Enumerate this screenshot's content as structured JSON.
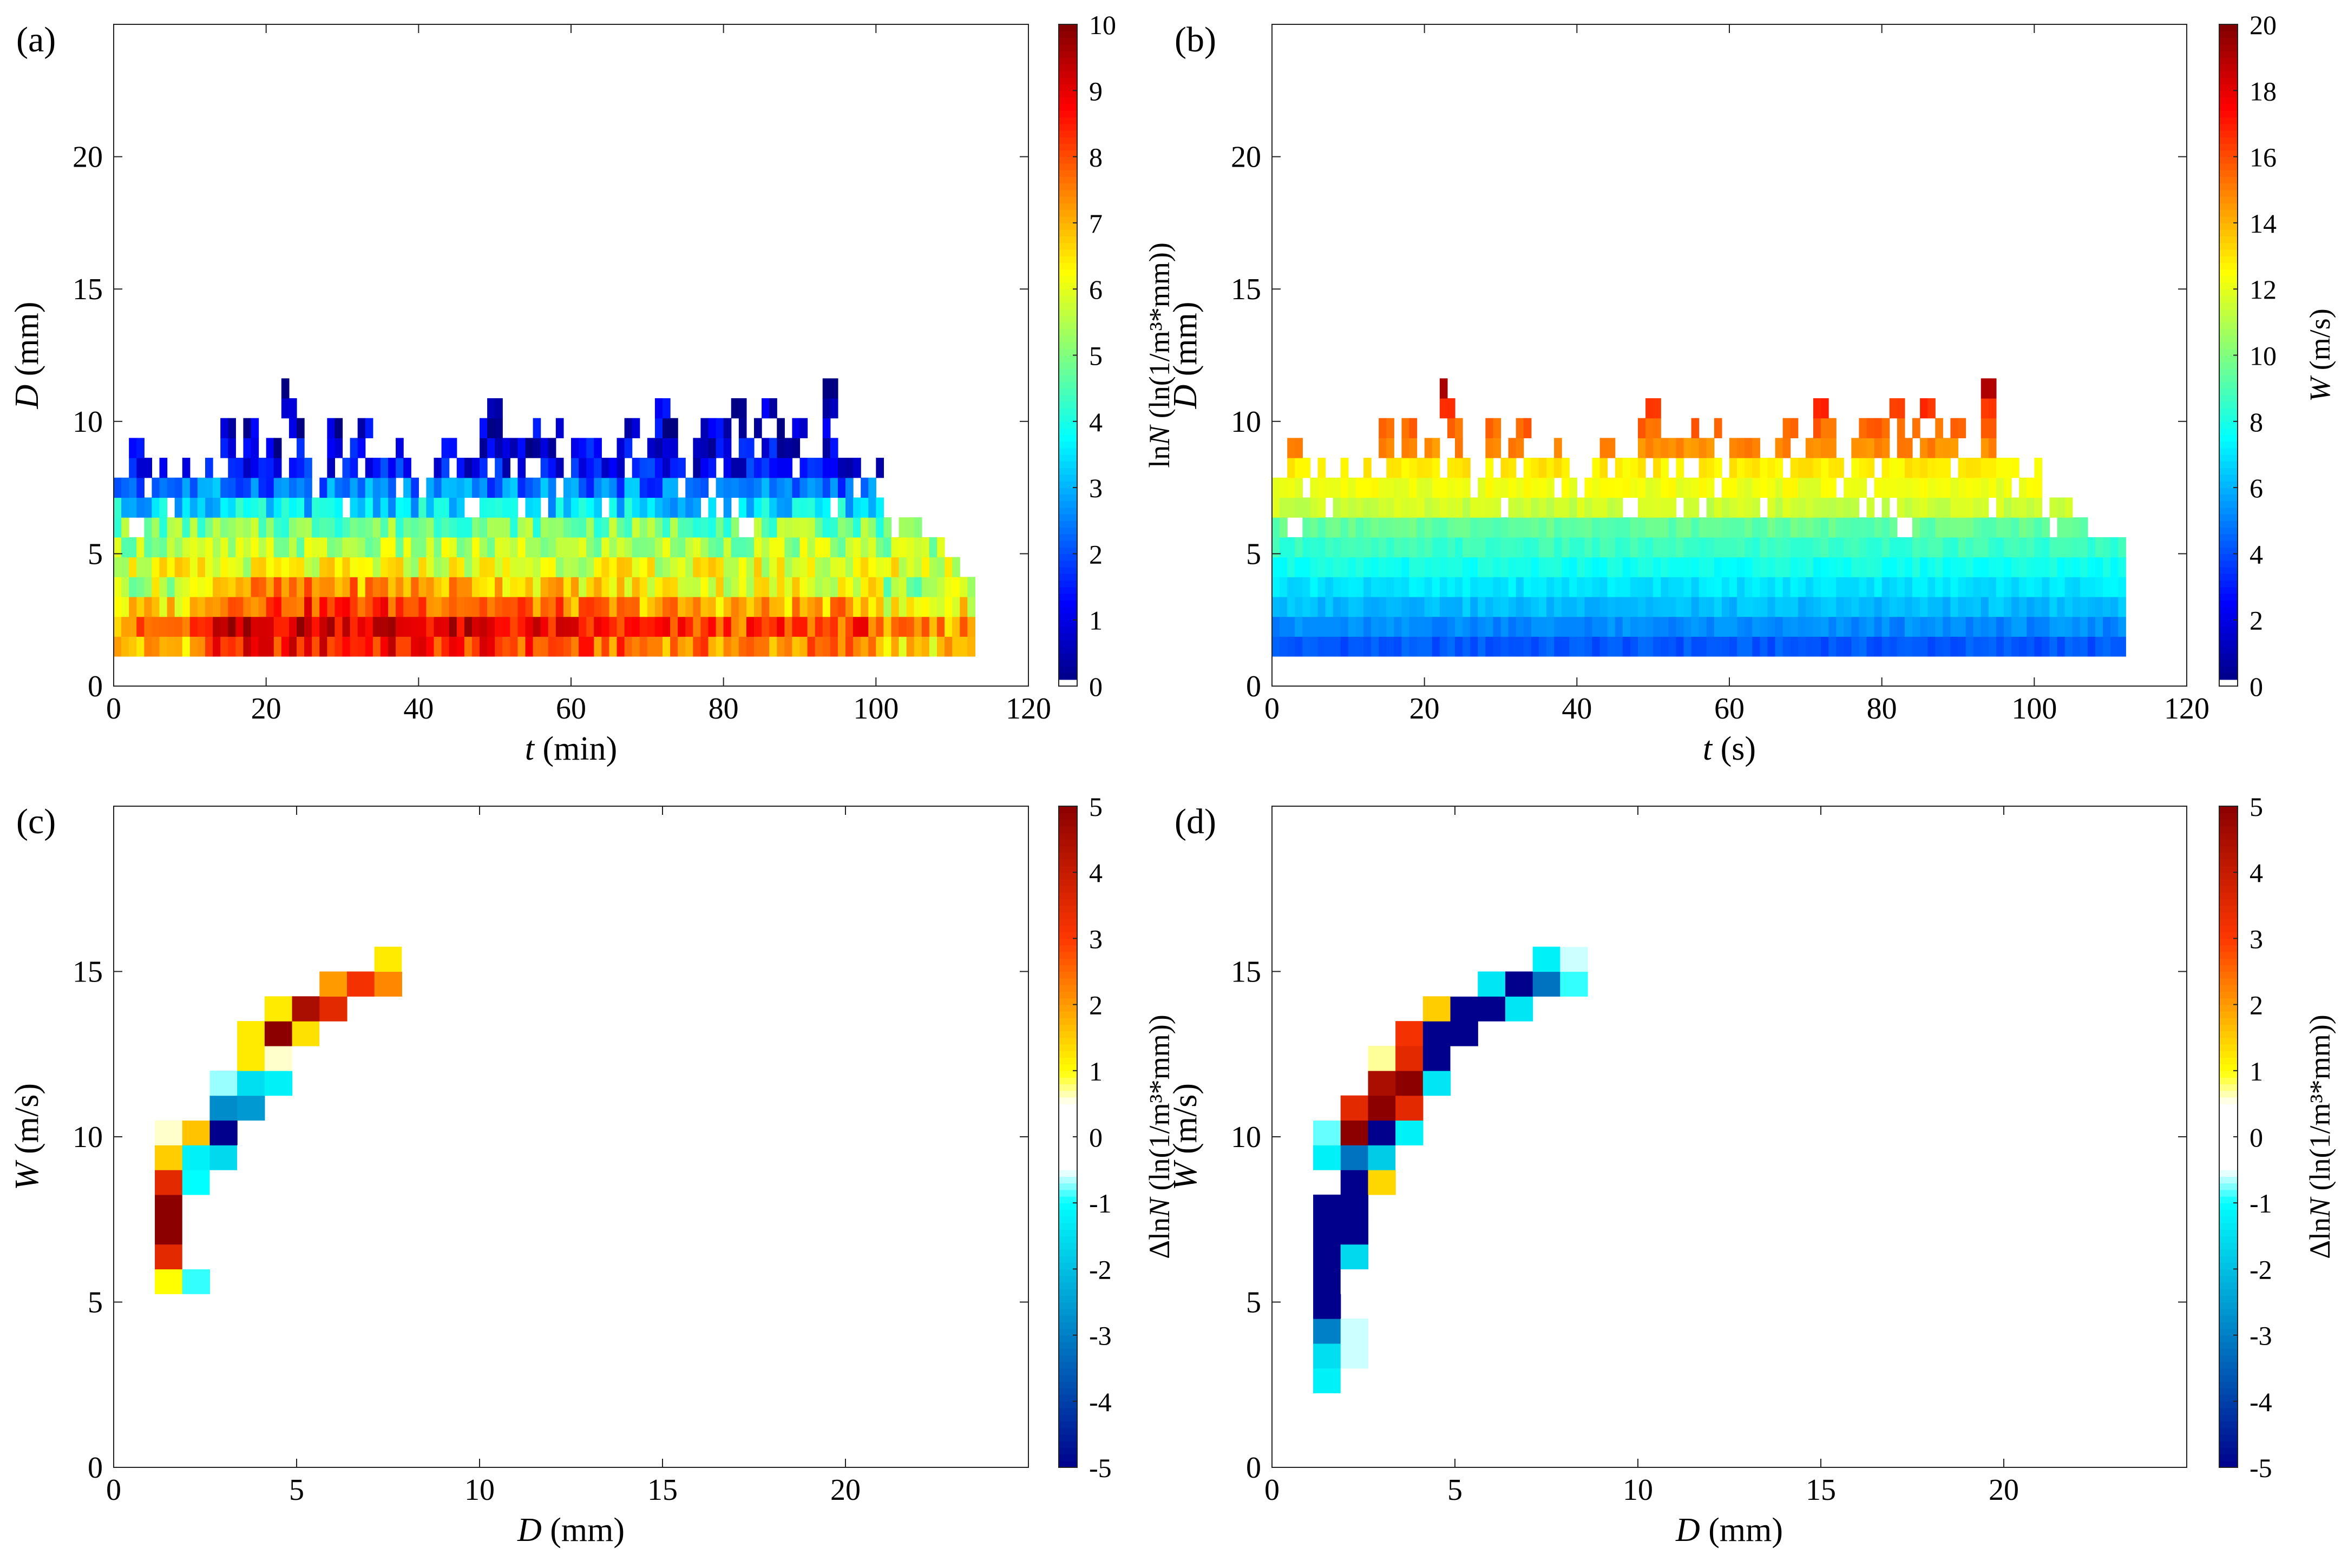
{
  "chart_data": [
    {
      "panel": "(a)",
      "type": "heatmap",
      "xlabel_italic": "t",
      "xlabel_rest": " (min)",
      "ylabel_italic": "D",
      "ylabel_rest": " (mm)",
      "xlim": [
        0,
        120
      ],
      "ylim": [
        0,
        25
      ],
      "xticks": [
        0,
        20,
        40,
        60,
        80,
        100,
        120
      ],
      "yticks": [
        0,
        5,
        10,
        15,
        20
      ],
      "colorbar": {
        "label_prefix": "ln",
        "label_italic": "N",
        "label_rest": " (ln(1/m³*mm))",
        "min": 0,
        "max": 10,
        "ticks": [
          0,
          1,
          2,
          3,
          4,
          5,
          6,
          7,
          8,
          9,
          10
        ],
        "colormap": "jet"
      },
      "cells": {
        "x_start": 0,
        "x_step": 1,
        "d_bins": [
          1.5,
          2.25,
          3.0,
          3.75,
          4.5,
          5.25,
          6.0,
          6.75,
          7.5,
          8.25,
          9.0,
          9.75,
          10.5,
          11.25
        ],
        "bin_height": 0.75,
        "columns_end": [
          112,
          112,
          112,
          112,
          110,
          108,
          105,
          101,
          99,
          100,
          95,
          93,
          94,
          94
        ],
        "profile_mean": [
          8.0,
          8.6,
          7.6,
          6.7,
          6.0,
          5.4,
          4.9,
          3.4,
          2.4,
          1.2,
          0.9,
          0.7,
          0.6,
          0.5
        ],
        "sparse_bins": {
          "8.25": [
            2,
            3,
            4,
            6,
            9,
            12,
            15,
            16,
            17,
            18,
            19,
            20,
            21,
            23,
            24,
            25,
            28,
            30,
            31,
            33,
            34,
            35,
            36,
            37,
            38,
            42,
            43,
            45,
            46,
            47,
            48,
            50,
            51,
            53,
            56,
            57,
            58,
            60,
            61,
            62,
            63,
            64,
            65,
            66,
            68,
            69,
            70,
            71,
            72,
            73,
            74,
            76,
            77,
            78,
            80,
            81,
            82,
            83,
            84,
            85,
            86,
            87,
            88,
            90,
            91,
            92,
            93,
            94,
            95,
            96,
            97,
            100
          ],
          "9.0": [
            2,
            3,
            14,
            15,
            17,
            18,
            20,
            21,
            24,
            28,
            29,
            31,
            32,
            37,
            43,
            44,
            48,
            49,
            50,
            51,
            52,
            53,
            54,
            55,
            56,
            57,
            60,
            61,
            62,
            63,
            66,
            67,
            70,
            71,
            72,
            73,
            76,
            77,
            78,
            79,
            80,
            82,
            83,
            85,
            86,
            87,
            88,
            89,
            93,
            94,
            100
          ],
          "9.75": [
            14,
            15,
            17,
            18,
            23,
            24,
            28,
            29,
            32,
            33,
            48,
            49,
            50,
            55,
            58,
            67,
            68,
            71,
            72,
            73,
            77,
            78,
            79,
            80,
            82,
            84,
            87,
            89,
            90,
            93,
            94
          ],
          "10.5": [
            22,
            23,
            49,
            50,
            71,
            72,
            81,
            82,
            85,
            86,
            93,
            94,
            95
          ],
          "11.25": [
            22,
            93,
            94
          ]
        }
      }
    },
    {
      "panel": "(b)",
      "type": "heatmap",
      "xlabel_italic": "t",
      "xlabel_rest": " (s)",
      "ylabel_italic": "D",
      "ylabel_rest": " (mm)",
      "xlim": [
        0,
        120
      ],
      "ylim": [
        0,
        25
      ],
      "xticks": [
        0,
        20,
        40,
        60,
        80,
        100,
        120
      ],
      "yticks": [
        0,
        5,
        10,
        15,
        20
      ],
      "colorbar": {
        "label_prefix": "",
        "label_italic": "W",
        "label_rest": " (m/s)",
        "min": 0,
        "max": 20,
        "ticks": [
          0,
          2,
          4,
          6,
          8,
          10,
          12,
          14,
          16,
          18,
          20
        ],
        "colormap": "jet"
      },
      "cells": {
        "x_start": 0,
        "x_step": 1,
        "d_bins": [
          1.5,
          2.25,
          3.0,
          3.75,
          4.5,
          5.25,
          6.0,
          6.75,
          7.5,
          8.25,
          9.0,
          9.75,
          10.5,
          11.25
        ],
        "bin_height": 0.75,
        "columns_end": [
          111,
          111,
          111,
          111,
          111,
          111,
          106,
          104,
          100,
          100,
          99,
          94,
          94,
          94
        ],
        "profile_mean": [
          4.2,
          5.2,
          6.2,
          7.0,
          7.8,
          8.6,
          9.4,
          11.5,
          12.2,
          12.8,
          14.8,
          15.5,
          16.5,
          19.5
        ],
        "sparse_bins": {
          "8.25": [
            2,
            3,
            4,
            6,
            9,
            12,
            15,
            16,
            17,
            18,
            19,
            20,
            21,
            23,
            24,
            25,
            28,
            30,
            31,
            33,
            34,
            35,
            36,
            37,
            38,
            42,
            43,
            45,
            46,
            47,
            48,
            50,
            51,
            53,
            56,
            57,
            58,
            60,
            61,
            62,
            63,
            64,
            65,
            66,
            68,
            69,
            70,
            71,
            72,
            73,
            74,
            76,
            77,
            78,
            80,
            81,
            82,
            83,
            84,
            85,
            86,
            87,
            88,
            90,
            91,
            92,
            93,
            94,
            95,
            96,
            97,
            100
          ],
          "9.0": [
            2,
            3,
            14,
            15,
            17,
            18,
            20,
            21,
            24,
            28,
            29,
            31,
            32,
            37,
            43,
            44,
            48,
            49,
            50,
            51,
            52,
            53,
            54,
            55,
            56,
            57,
            60,
            61,
            62,
            63,
            66,
            67,
            70,
            71,
            72,
            73,
            76,
            77,
            78,
            79,
            80,
            82,
            83,
            85,
            86,
            87,
            88,
            89,
            93,
            94,
            100
          ],
          "9.75": [
            14,
            15,
            17,
            18,
            23,
            24,
            28,
            29,
            32,
            33,
            48,
            49,
            50,
            55,
            58,
            67,
            68,
            71,
            72,
            73,
            77,
            78,
            79,
            80,
            82,
            84,
            87,
            89,
            90,
            93,
            94
          ],
          "10.5": [
            22,
            23,
            49,
            50,
            71,
            72,
            81,
            82,
            85,
            86,
            93,
            94,
            95
          ],
          "11.25": [
            22,
            93,
            94
          ]
        }
      }
    },
    {
      "panel": "(c)",
      "type": "heatmap",
      "xlabel_italic": "D",
      "xlabel_rest": " (mm)",
      "ylabel_italic": "W",
      "ylabel_rest": " (m/s)",
      "xlim": [
        0,
        25
      ],
      "ylim": [
        0,
        20
      ],
      "xticks": [
        0,
        5,
        10,
        15,
        20
      ],
      "yticks": [
        0,
        5,
        10,
        15
      ],
      "colorbar": {
        "label_prefix": "Δln",
        "label_italic": "N",
        "label_rest": " (ln(1/m³*mm))",
        "min": -5,
        "max": 5,
        "ticks": [
          -5,
          -4,
          -3,
          -2,
          -1,
          0,
          1,
          2,
          3,
          4,
          5
        ],
        "colormap": "jet_white_center"
      },
      "cells": {
        "cell_width": 0.75,
        "cell_height": 0.75,
        "points": [
          [
            1.5,
            2.625,
            0.2
          ],
          [
            1.5,
            3.375,
            0.2
          ],
          [
            1.5,
            4.125,
            0.15
          ],
          [
            1.5,
            4.875,
            0.1
          ],
          [
            1.5,
            5.625,
            1.0
          ],
          [
            1.5,
            6.375,
            3.5
          ],
          [
            1.5,
            7.125,
            5.0
          ],
          [
            1.5,
            7.875,
            5.0
          ],
          [
            1.5,
            8.625,
            3.5
          ],
          [
            1.5,
            9.375,
            1.5
          ],
          [
            1.5,
            10.125,
            0.6
          ],
          [
            1.5,
            10.875,
            0.3
          ],
          [
            2.25,
            1.875,
            -0.5
          ],
          [
            2.25,
            4.875,
            0.2
          ],
          [
            2.25,
            5.625,
            -0.9
          ],
          [
            2.25,
            6.375,
            -0.2
          ],
          [
            2.25,
            7.125,
            -0.2
          ],
          [
            2.25,
            7.875,
            -0.3
          ],
          [
            2.25,
            8.625,
            -1.0
          ],
          [
            2.25,
            9.375,
            -1.2
          ],
          [
            2.25,
            10.125,
            1.6
          ],
          [
            2.25,
            10.875,
            0.4
          ],
          [
            3.0,
            8.625,
            -0.5
          ],
          [
            3.0,
            9.375,
            -1.6
          ],
          [
            3.0,
            10.125,
            -5.0
          ],
          [
            3.0,
            10.875,
            -2.8
          ],
          [
            3.0,
            11.625,
            -0.7
          ],
          [
            3.75,
            9.375,
            -0.2
          ],
          [
            3.75,
            10.875,
            -2.6
          ],
          [
            3.75,
            11.625,
            -1.5
          ],
          [
            3.75,
            12.375,
            1.2
          ],
          [
            3.75,
            13.125,
            1.2
          ],
          [
            4.5,
            11.625,
            -1.2
          ],
          [
            4.5,
            12.375,
            0.6
          ],
          [
            4.5,
            13.125,
            5.0
          ],
          [
            4.5,
            13.875,
            1.2
          ],
          [
            5.25,
            12.375,
            0.5
          ],
          [
            5.25,
            13.125,
            1.3
          ],
          [
            5.25,
            13.875,
            4.5
          ],
          [
            6.0,
            13.125,
            0.3
          ],
          [
            6.0,
            13.875,
            3.5
          ],
          [
            6.0,
            14.625,
            2.0
          ],
          [
            6.75,
            14.625,
            3.2
          ],
          [
            7.5,
            14.625,
            2.2
          ],
          [
            7.5,
            15.375,
            1.2
          ],
          [
            8.25,
            15.375,
            0.4
          ]
        ]
      }
    },
    {
      "panel": "(d)",
      "type": "heatmap",
      "xlabel_italic": "D",
      "xlabel_rest": " (mm)",
      "ylabel_italic": "W",
      "ylabel_rest": " (m/s)",
      "xlim": [
        0,
        25
      ],
      "ylim": [
        0,
        20
      ],
      "xticks": [
        0,
        5,
        10,
        15,
        20
      ],
      "yticks": [
        0,
        5,
        10,
        15
      ],
      "colorbar": {
        "label_prefix": "Δln",
        "label_italic": "N",
        "label_rest": " (ln(1/m³*mm))",
        "min": -5,
        "max": 5,
        "ticks": [
          -5,
          -4,
          -3,
          -2,
          -1,
          0,
          1,
          2,
          3,
          4,
          5
        ],
        "colormap": "jet_white_center"
      },
      "cells": {
        "cell_width": 0.75,
        "cell_height": 0.75,
        "points": [
          [
            1.5,
            2.625,
            -1.2
          ],
          [
            1.5,
            3.375,
            -1.5
          ],
          [
            1.5,
            4.125,
            -3.0
          ],
          [
            1.5,
            4.875,
            -5.0
          ],
          [
            1.5,
            5.625,
            -5.0
          ],
          [
            1.5,
            6.375,
            -5.0
          ],
          [
            1.5,
            7.125,
            -5.0
          ],
          [
            1.5,
            7.875,
            -5.0
          ],
          [
            1.5,
            9.375,
            -1.2
          ],
          [
            1.5,
            10.125,
            -0.8
          ],
          [
            1.5,
            10.875,
            -0.5
          ],
          [
            2.25,
            1.875,
            -0.4
          ],
          [
            2.25,
            2.625,
            -0.4
          ],
          [
            2.25,
            3.375,
            -0.6
          ],
          [
            2.25,
            4.125,
            -0.6
          ],
          [
            2.25,
            5.625,
            -0.3
          ],
          [
            2.25,
            6.375,
            -1.6
          ],
          [
            2.25,
            7.125,
            -5.0
          ],
          [
            2.25,
            7.875,
            -5.0
          ],
          [
            2.25,
            8.625,
            -5.0
          ],
          [
            2.25,
            9.375,
            -3.2
          ],
          [
            2.25,
            10.125,
            5.0
          ],
          [
            2.25,
            10.875,
            3.5
          ],
          [
            3.0,
            8.625,
            1.4
          ],
          [
            3.0,
            9.375,
            -1.8
          ],
          [
            3.0,
            10.125,
            -5.0
          ],
          [
            3.0,
            10.875,
            5.0
          ],
          [
            3.0,
            11.625,
            4.5
          ],
          [
            3.0,
            12.375,
            0.7
          ],
          [
            3.75,
            9.375,
            0.2
          ],
          [
            3.75,
            10.125,
            -1.2
          ],
          [
            3.75,
            10.875,
            3.5
          ],
          [
            3.75,
            11.625,
            5.0
          ],
          [
            3.75,
            12.375,
            3.5
          ],
          [
            3.75,
            13.125,
            3.2
          ],
          [
            4.5,
            11.625,
            -1.4
          ],
          [
            4.5,
            12.375,
            -5.0
          ],
          [
            4.5,
            13.125,
            -5.0
          ],
          [
            4.5,
            13.875,
            1.5
          ],
          [
            5.25,
            12.375,
            -0.4
          ],
          [
            5.25,
            13.125,
            -5.0
          ],
          [
            5.25,
            13.875,
            -5.0
          ],
          [
            5.25,
            14.625,
            0.3
          ],
          [
            6.0,
            13.875,
            -5.0
          ],
          [
            6.0,
            14.625,
            -1.4
          ],
          [
            6.75,
            13.875,
            -1.4
          ],
          [
            6.75,
            14.625,
            -5.0
          ],
          [
            7.5,
            14.625,
            -3.2
          ],
          [
            7.5,
            15.375,
            -1.2
          ],
          [
            8.25,
            14.625,
            -0.9
          ],
          [
            8.25,
            15.375,
            -0.6
          ],
          [
            8.25,
            16.125,
            -0.2
          ]
        ]
      }
    }
  ]
}
